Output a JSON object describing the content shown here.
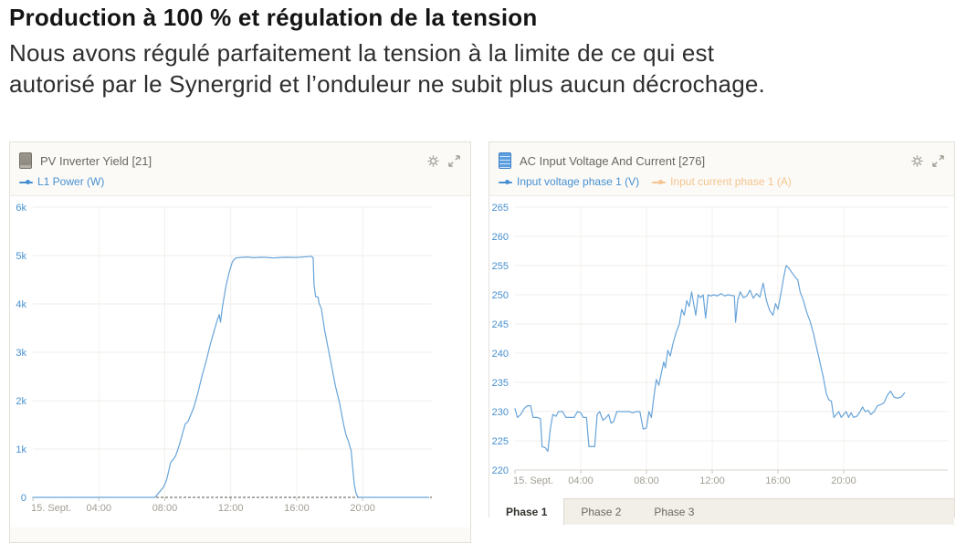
{
  "header": {
    "title": "Production à 100 % et régulation de la tension",
    "subtitle_lines": [
      "Nous avons régulé parfaitement la tension à la limite de ce qui est",
      "autorisé par le Synergrid et l’onduleur ne subit plus aucun décrochage."
    ]
  },
  "colors": {
    "series_blue": "#68a4d9",
    "axis_label_blue": "#4790d0",
    "legend_disabled_orange": "#f5c48e",
    "x_label_gray": "#a39e95",
    "panel_border": "#e3e0d9"
  },
  "panels": [
    {
      "title": "PV Inverter Yield [21]",
      "device_icon": "pv-inverter-icon",
      "legend": [
        {
          "label": "L1 Power (W)",
          "color": "#4790d0",
          "state": "active"
        }
      ]
    },
    {
      "title": "AC Input Voltage And Current [276]",
      "device_icon": "multi-inverter-icon",
      "legend": [
        {
          "label": "Input voltage phase 1 (V)",
          "color": "#4790d0",
          "state": "active"
        },
        {
          "label": "Input current phase 1 (A)",
          "color": "#f5c48e",
          "state": "disabled"
        }
      ],
      "tabs": [
        {
          "label": "Phase 1",
          "active": true
        },
        {
          "label": "Phase 2",
          "active": false
        },
        {
          "label": "Phase 3",
          "active": false
        }
      ]
    }
  ],
  "chart_data": [
    {
      "type": "line",
      "title": "PV Inverter Yield [21]",
      "xlabel": "15 Sept, 00:00–24:00",
      "ylabel": "L1 Power (W)",
      "ylim": [
        0,
        6000
      ],
      "grid": true,
      "legend_position": "top-left",
      "baseline_style": "dashed",
      "y_ticks": [
        {
          "v": 0,
          "label": "0"
        },
        {
          "v": 1000,
          "label": "1k"
        },
        {
          "v": 2000,
          "label": "2k"
        },
        {
          "v": 3000,
          "label": "3k"
        },
        {
          "v": 4000,
          "label": "4k"
        },
        {
          "v": 5000,
          "label": "5k"
        },
        {
          "v": 6000,
          "label": "6k"
        }
      ],
      "x_ticks": [
        {
          "h": 0,
          "label": "15. Sept."
        },
        {
          "h": 4,
          "label": "04:00"
        },
        {
          "h": 8,
          "label": "08:00"
        },
        {
          "h": 12,
          "label": "12:00"
        },
        {
          "h": 16,
          "label": "16:00"
        },
        {
          "h": 20,
          "label": "20:00"
        }
      ],
      "series": [
        {
          "name": "L1 Power (W)",
          "color": "#68a4d9",
          "points": [
            [
              0,
              0
            ],
            [
              1,
              0
            ],
            [
              2,
              0
            ],
            [
              3,
              0
            ],
            [
              4,
              0
            ],
            [
              5,
              0
            ],
            [
              6,
              0
            ],
            [
              7,
              0
            ],
            [
              7.4,
              0
            ],
            [
              7.6,
              80
            ],
            [
              7.9,
              200
            ],
            [
              8.1,
              350
            ],
            [
              8.25,
              560
            ],
            [
              8.35,
              720
            ],
            [
              8.5,
              780
            ],
            [
              8.65,
              850
            ],
            [
              8.9,
              1100
            ],
            [
              9.1,
              1350
            ],
            [
              9.25,
              1520
            ],
            [
              9.4,
              1560
            ],
            [
              9.5,
              1640
            ],
            [
              9.75,
              1850
            ],
            [
              10,
              2150
            ],
            [
              10.25,
              2500
            ],
            [
              10.5,
              2800
            ],
            [
              10.75,
              3150
            ],
            [
              11,
              3450
            ],
            [
              11.2,
              3680
            ],
            [
              11.3,
              3780
            ],
            [
              11.38,
              3620
            ],
            [
              11.5,
              3950
            ],
            [
              11.7,
              4350
            ],
            [
              11.9,
              4650
            ],
            [
              12.1,
              4870
            ],
            [
              12.3,
              4950
            ],
            [
              12.6,
              4960
            ],
            [
              13,
              4970
            ],
            [
              13.4,
              4955
            ],
            [
              13.8,
              4965
            ],
            [
              14.2,
              4960
            ],
            [
              14.6,
              4950
            ],
            [
              15,
              4960
            ],
            [
              15.4,
              4965
            ],
            [
              15.8,
              4960
            ],
            [
              16.2,
              4965
            ],
            [
              16.6,
              4975
            ],
            [
              16.9,
              4985
            ],
            [
              17,
              4950
            ],
            [
              17.05,
              4400
            ],
            [
              17.15,
              4150
            ],
            [
              17.3,
              4140
            ],
            [
              17.35,
              4020
            ],
            [
              17.5,
              3900
            ],
            [
              17.7,
              3450
            ],
            [
              17.9,
              3100
            ],
            [
              18.1,
              2750
            ],
            [
              18.35,
              2300
            ],
            [
              18.6,
              1950
            ],
            [
              18.85,
              1500
            ],
            [
              19,
              1280
            ],
            [
              19.15,
              1150
            ],
            [
              19.25,
              1020
            ],
            [
              19.3,
              980
            ],
            [
              19.4,
              600
            ],
            [
              19.5,
              260
            ],
            [
              19.6,
              90
            ],
            [
              19.7,
              10
            ],
            [
              19.8,
              0
            ],
            [
              20,
              0
            ],
            [
              21,
              0
            ],
            [
              22,
              0
            ],
            [
              23,
              0
            ],
            [
              24,
              0
            ]
          ]
        }
      ]
    },
    {
      "type": "line",
      "title": "AC Input Voltage And Current [276]",
      "xlabel": "15 Sept, 00:00–24:00",
      "ylabel": "Input voltage phase 1 (V)",
      "ylim": [
        220,
        265
      ],
      "grid": true,
      "legend_position": "top-left",
      "baseline_style": "solid",
      "y_ticks": [
        {
          "v": 220,
          "label": "220"
        },
        {
          "v": 225,
          "label": "225"
        },
        {
          "v": 230,
          "label": "230"
        },
        {
          "v": 235,
          "label": "235"
        },
        {
          "v": 240,
          "label": "240"
        },
        {
          "v": 245,
          "label": "245"
        },
        {
          "v": 250,
          "label": "250"
        },
        {
          "v": 255,
          "label": "255"
        },
        {
          "v": 260,
          "label": "260"
        },
        {
          "v": 265,
          "label": "265"
        }
      ],
      "x_ticks": [
        {
          "h": 0,
          "label": "15. Sept."
        },
        {
          "h": 4,
          "label": "04:00"
        },
        {
          "h": 8,
          "label": "08:00"
        },
        {
          "h": 12,
          "label": "12:00"
        },
        {
          "h": 16,
          "label": "16:00"
        },
        {
          "h": 20,
          "label": "20:00"
        }
      ],
      "series": [
        {
          "name": "Input voltage phase 1 (V)",
          "color": "#68a4d9",
          "points": [
            [
              0,
              230.5
            ],
            [
              0.15,
              229
            ],
            [
              0.35,
              229.5
            ],
            [
              0.55,
              230.5
            ],
            [
              0.75,
              231
            ],
            [
              0.95,
              231
            ],
            [
              1.1,
              229
            ],
            [
              1.35,
              229
            ],
            [
              1.55,
              228.8
            ],
            [
              1.65,
              224
            ],
            [
              1.85,
              223.8
            ],
            [
              2,
              223.2
            ],
            [
              2.15,
              227
            ],
            [
              2.3,
              229.5
            ],
            [
              2.5,
              229.2
            ],
            [
              2.65,
              230
            ],
            [
              2.9,
              230
            ],
            [
              3.1,
              229
            ],
            [
              3.35,
              229
            ],
            [
              3.6,
              229
            ],
            [
              3.8,
              230
            ],
            [
              4,
              229.8
            ],
            [
              4.15,
              229
            ],
            [
              4.35,
              229
            ],
            [
              4.5,
              224
            ],
            [
              4.7,
              224
            ],
            [
              4.85,
              224
            ],
            [
              5,
              229.5
            ],
            [
              5.15,
              230
            ],
            [
              5.35,
              228.5
            ],
            [
              5.55,
              229
            ],
            [
              5.7,
              229.5
            ],
            [
              5.85,
              228
            ],
            [
              6,
              228.3
            ],
            [
              6.2,
              230
            ],
            [
              6.45,
              230
            ],
            [
              6.7,
              230
            ],
            [
              6.95,
              230
            ],
            [
              7.15,
              229.8
            ],
            [
              7.4,
              230
            ],
            [
              7.6,
              230
            ],
            [
              7.8,
              227
            ],
            [
              8,
              227.2
            ],
            [
              8.15,
              230
            ],
            [
              8.3,
              229
            ],
            [
              8.45,
              232.5
            ],
            [
              8.6,
              235.5
            ],
            [
              8.75,
              234.5
            ],
            [
              8.9,
              236.5
            ],
            [
              9.05,
              238.5
            ],
            [
              9.15,
              237.5
            ],
            [
              9.3,
              240.5
            ],
            [
              9.45,
              239.5
            ],
            [
              9.6,
              241.5
            ],
            [
              9.8,
              243.5
            ],
            [
              10,
              245
            ],
            [
              10.15,
              247.5
            ],
            [
              10.3,
              246.5
            ],
            [
              10.45,
              249
            ],
            [
              10.6,
              248
            ],
            [
              10.75,
              250.5
            ],
            [
              10.9,
              248
            ],
            [
              11,
              246.5
            ],
            [
              11.15,
              250
            ],
            [
              11.3,
              249.5
            ],
            [
              11.45,
              250
            ],
            [
              11.6,
              246
            ],
            [
              11.75,
              250
            ],
            [
              11.9,
              249.8
            ],
            [
              12.1,
              250
            ],
            [
              12.3,
              249.8
            ],
            [
              12.55,
              250.2
            ],
            [
              12.75,
              249.8
            ],
            [
              12.95,
              250
            ],
            [
              13.15,
              249.9
            ],
            [
              13.35,
              249.8
            ],
            [
              13.42,
              245.3
            ],
            [
              13.55,
              249
            ],
            [
              13.7,
              250.5
            ],
            [
              13.9,
              249.5
            ],
            [
              14.1,
              249.8
            ],
            [
              14.3,
              250.8
            ],
            [
              14.5,
              249.4
            ],
            [
              14.7,
              250.2
            ],
            [
              14.9,
              249.6
            ],
            [
              15.1,
              252
            ],
            [
              15.3,
              249
            ],
            [
              15.5,
              247.3
            ],
            [
              15.7,
              246.5
            ],
            [
              15.85,
              248.5
            ],
            [
              16,
              247.5
            ],
            [
              16.2,
              250.5
            ],
            [
              16.35,
              253
            ],
            [
              16.5,
              255
            ],
            [
              16.65,
              254.6
            ],
            [
              16.85,
              253.8
            ],
            [
              17.05,
              253
            ],
            [
              17.2,
              252.6
            ],
            [
              17.35,
              250.5
            ],
            [
              17.55,
              249
            ],
            [
              17.75,
              247
            ],
            [
              17.95,
              245.5
            ],
            [
              18.15,
              243.5
            ],
            [
              18.35,
              241
            ],
            [
              18.55,
              238.5
            ],
            [
              18.75,
              236
            ],
            [
              18.95,
              233
            ],
            [
              19.1,
              232
            ],
            [
              19.25,
              231.8
            ],
            [
              19.4,
              229
            ],
            [
              19.55,
              229.5
            ],
            [
              19.7,
              230
            ],
            [
              19.85,
              229
            ],
            [
              20,
              229.5
            ],
            [
              20.15,
              230
            ],
            [
              20.3,
              229
            ],
            [
              20.45,
              229.8
            ],
            [
              20.6,
              229
            ],
            [
              20.8,
              229.2
            ],
            [
              21,
              230
            ],
            [
              21.15,
              230.8
            ],
            [
              21.3,
              230
            ],
            [
              21.5,
              230.2
            ],
            [
              21.65,
              229.5
            ],
            [
              21.85,
              230
            ],
            [
              22.05,
              231
            ],
            [
              22.25,
              231.2
            ],
            [
              22.45,
              231.5
            ],
            [
              22.65,
              232.8
            ],
            [
              22.85,
              233.5
            ],
            [
              23.05,
              232.5
            ],
            [
              23.25,
              232.3
            ],
            [
              23.5,
              232.5
            ],
            [
              23.7,
              233.2
            ]
          ]
        },
        {
          "name": "Input current phase 1 (A)",
          "color": "#f5c48e",
          "hidden": true,
          "points": []
        }
      ]
    }
  ]
}
